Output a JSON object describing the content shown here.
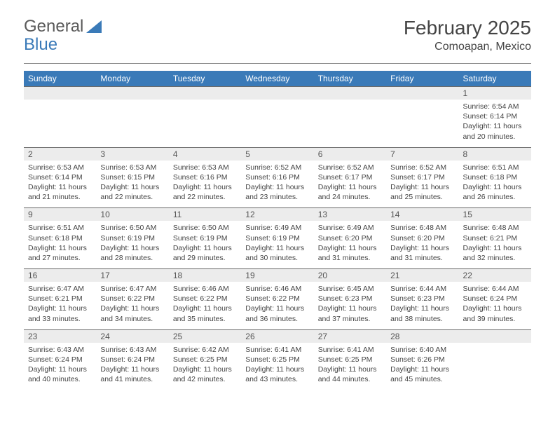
{
  "logo": {
    "word1": "General",
    "word2": "Blue"
  },
  "title": "February 2025",
  "location": "Comoapan, Mexico",
  "colors": {
    "header_bg": "#3a7ab8",
    "header_text": "#ffffff",
    "daynum_bg": "#ececec",
    "border": "#6a6a6a",
    "body_text": "#444444"
  },
  "day_headers": [
    "Sunday",
    "Monday",
    "Tuesday",
    "Wednesday",
    "Thursday",
    "Friday",
    "Saturday"
  ],
  "weeks": [
    [
      {
        "n": "",
        "empty": true
      },
      {
        "n": "",
        "empty": true
      },
      {
        "n": "",
        "empty": true
      },
      {
        "n": "",
        "empty": true
      },
      {
        "n": "",
        "empty": true
      },
      {
        "n": "",
        "empty": true
      },
      {
        "n": "1",
        "sunrise": "6:54 AM",
        "sunset": "6:14 PM",
        "daylight": "11 hours and 20 minutes."
      }
    ],
    [
      {
        "n": "2",
        "sunrise": "6:53 AM",
        "sunset": "6:14 PM",
        "daylight": "11 hours and 21 minutes."
      },
      {
        "n": "3",
        "sunrise": "6:53 AM",
        "sunset": "6:15 PM",
        "daylight": "11 hours and 22 minutes."
      },
      {
        "n": "4",
        "sunrise": "6:53 AM",
        "sunset": "6:16 PM",
        "daylight": "11 hours and 22 minutes."
      },
      {
        "n": "5",
        "sunrise": "6:52 AM",
        "sunset": "6:16 PM",
        "daylight": "11 hours and 23 minutes."
      },
      {
        "n": "6",
        "sunrise": "6:52 AM",
        "sunset": "6:17 PM",
        "daylight": "11 hours and 24 minutes."
      },
      {
        "n": "7",
        "sunrise": "6:52 AM",
        "sunset": "6:17 PM",
        "daylight": "11 hours and 25 minutes."
      },
      {
        "n": "8",
        "sunrise": "6:51 AM",
        "sunset": "6:18 PM",
        "daylight": "11 hours and 26 minutes."
      }
    ],
    [
      {
        "n": "9",
        "sunrise": "6:51 AM",
        "sunset": "6:18 PM",
        "daylight": "11 hours and 27 minutes."
      },
      {
        "n": "10",
        "sunrise": "6:50 AM",
        "sunset": "6:19 PM",
        "daylight": "11 hours and 28 minutes."
      },
      {
        "n": "11",
        "sunrise": "6:50 AM",
        "sunset": "6:19 PM",
        "daylight": "11 hours and 29 minutes."
      },
      {
        "n": "12",
        "sunrise": "6:49 AM",
        "sunset": "6:19 PM",
        "daylight": "11 hours and 30 minutes."
      },
      {
        "n": "13",
        "sunrise": "6:49 AM",
        "sunset": "6:20 PM",
        "daylight": "11 hours and 31 minutes."
      },
      {
        "n": "14",
        "sunrise": "6:48 AM",
        "sunset": "6:20 PM",
        "daylight": "11 hours and 31 minutes."
      },
      {
        "n": "15",
        "sunrise": "6:48 AM",
        "sunset": "6:21 PM",
        "daylight": "11 hours and 32 minutes."
      }
    ],
    [
      {
        "n": "16",
        "sunrise": "6:47 AM",
        "sunset": "6:21 PM",
        "daylight": "11 hours and 33 minutes."
      },
      {
        "n": "17",
        "sunrise": "6:47 AM",
        "sunset": "6:22 PM",
        "daylight": "11 hours and 34 minutes."
      },
      {
        "n": "18",
        "sunrise": "6:46 AM",
        "sunset": "6:22 PM",
        "daylight": "11 hours and 35 minutes."
      },
      {
        "n": "19",
        "sunrise": "6:46 AM",
        "sunset": "6:22 PM",
        "daylight": "11 hours and 36 minutes."
      },
      {
        "n": "20",
        "sunrise": "6:45 AM",
        "sunset": "6:23 PM",
        "daylight": "11 hours and 37 minutes."
      },
      {
        "n": "21",
        "sunrise": "6:44 AM",
        "sunset": "6:23 PM",
        "daylight": "11 hours and 38 minutes."
      },
      {
        "n": "22",
        "sunrise": "6:44 AM",
        "sunset": "6:24 PM",
        "daylight": "11 hours and 39 minutes."
      }
    ],
    [
      {
        "n": "23",
        "sunrise": "6:43 AM",
        "sunset": "6:24 PM",
        "daylight": "11 hours and 40 minutes."
      },
      {
        "n": "24",
        "sunrise": "6:43 AM",
        "sunset": "6:24 PM",
        "daylight": "11 hours and 41 minutes."
      },
      {
        "n": "25",
        "sunrise": "6:42 AM",
        "sunset": "6:25 PM",
        "daylight": "11 hours and 42 minutes."
      },
      {
        "n": "26",
        "sunrise": "6:41 AM",
        "sunset": "6:25 PM",
        "daylight": "11 hours and 43 minutes."
      },
      {
        "n": "27",
        "sunrise": "6:41 AM",
        "sunset": "6:25 PM",
        "daylight": "11 hours and 44 minutes."
      },
      {
        "n": "28",
        "sunrise": "6:40 AM",
        "sunset": "6:26 PM",
        "daylight": "11 hours and 45 minutes."
      },
      {
        "n": "",
        "empty": true
      }
    ]
  ],
  "labels": {
    "sunrise": "Sunrise:",
    "sunset": "Sunset:",
    "daylight": "Daylight:"
  }
}
